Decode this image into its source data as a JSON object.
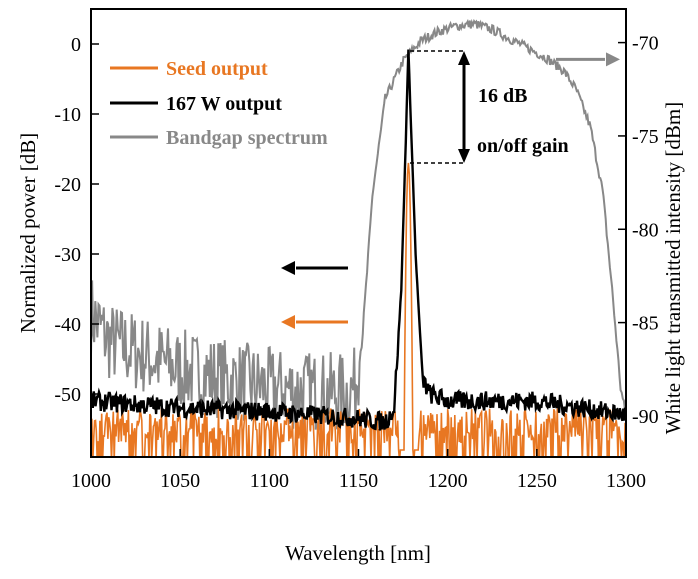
{
  "chart_data": {
    "type": "line",
    "title": "",
    "xlabel": "Wavelength [nm]",
    "ylabel_left": "Normalized power [dB]",
    "ylabel_right": "White light transmitted intensity [dBm]",
    "xlim": [
      1000,
      1300
    ],
    "ylim_left": [
      -59,
      5
    ],
    "ylim_right": [
      -92.2,
      -68.2
    ],
    "x_ticks": [
      1000,
      1050,
      1100,
      1150,
      1200,
      1250,
      1300
    ],
    "y_ticks_left": [
      0,
      -10,
      -20,
      -30,
      -40,
      -50
    ],
    "y_ticks_right": [
      -70,
      -75,
      -80,
      -85,
      -90
    ],
    "legend_position": "top-left",
    "grid": false,
    "series": [
      {
        "name": "Seed output",
        "color": "#E87722",
        "axis": "left",
        "noise_floor": [
          -57,
          -52
        ],
        "peak": {
          "x": 1178,
          "y": -17,
          "width_nm": 2.5
        }
      },
      {
        "name": "167 W output",
        "color": "#000000",
        "axis": "left",
        "x": [
          1000,
          1050,
          1100,
          1150,
          1165,
          1170,
          1174,
          1178,
          1182,
          1186,
          1190,
          1200,
          1250,
          1300
        ],
        "y": [
          -51,
          -52,
          -52.5,
          -53.5,
          -54,
          -52,
          -35,
          -1,
          -30,
          -48,
          -50,
          -51,
          -51,
          -53
        ]
      },
      {
        "name": "Bandgap spectrum",
        "color": "#888888",
        "axis": "right",
        "x": [
          1000,
          1010,
          1050,
          1100,
          1140,
          1148,
          1152,
          1158,
          1165,
          1175,
          1185,
          1195,
          1205,
          1215,
          1225,
          1235,
          1245,
          1255,
          1265,
          1272,
          1280,
          1287,
          1292,
          1297,
          1300
        ],
        "y": [
          -84.5,
          -86,
          -87.5,
          -88.5,
          -88.8,
          -88.5,
          -86,
          -78,
          -73,
          -71,
          -69.9,
          -69.4,
          -69.1,
          -69,
          -69.3,
          -69.8,
          -70.3,
          -70.8,
          -71.5,
          -72.5,
          -74.5,
          -78,
          -83,
          -88.5,
          -90
        ]
      }
    ],
    "annotations": {
      "gain_label_1": "16 dB",
      "gain_label_2": "on/off gain"
    }
  }
}
